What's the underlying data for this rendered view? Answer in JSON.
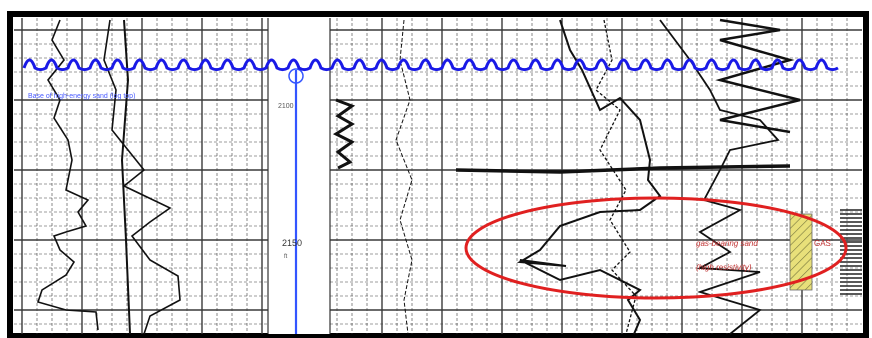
{
  "figure": {
    "blue_annotation": "Base of high-energy sand (log top)",
    "depth_marker_top": "2100",
    "depth_marker_mid": "2150",
    "depth_marker_mid_unit": "ft",
    "red_annotation_line1": "gas-bearing sand",
    "red_annotation_line2": "(high resistivity)",
    "right_flag": "GAS"
  },
  "colors": {
    "grid": "#3a3a3a",
    "log_trace": "#111111",
    "wavy_line": "#1a1ae6",
    "depth_line": "#3355ff",
    "highlight_ellipse": "#e02020",
    "annotation_text": "#c03030",
    "hatch_fill": "#e8e07a"
  }
}
